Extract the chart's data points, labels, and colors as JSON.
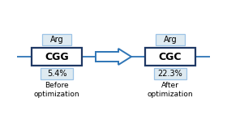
{
  "before_codon": "CGG",
  "after_codon": "CGC",
  "amino_acid": "Arg",
  "before_pct": "5.4%",
  "after_pct": "22.3%",
  "before_label": "Before\noptimization",
  "after_label": "After\noptimization",
  "box_edge_color": "#1f3864",
  "box_face_color": "#ffffff",
  "small_box_edge_color": "#9dc3e6",
  "small_box_face_color": "#deeaf1",
  "line_color": "#2e75b6",
  "arrow_edge_color": "#2e75b6",
  "arrow_face_color": "#ffffff",
  "text_color": "#000000",
  "codon_fontsize": 9,
  "label_fontsize": 6.5,
  "small_fontsize": 7,
  "background_color": "#ffffff"
}
